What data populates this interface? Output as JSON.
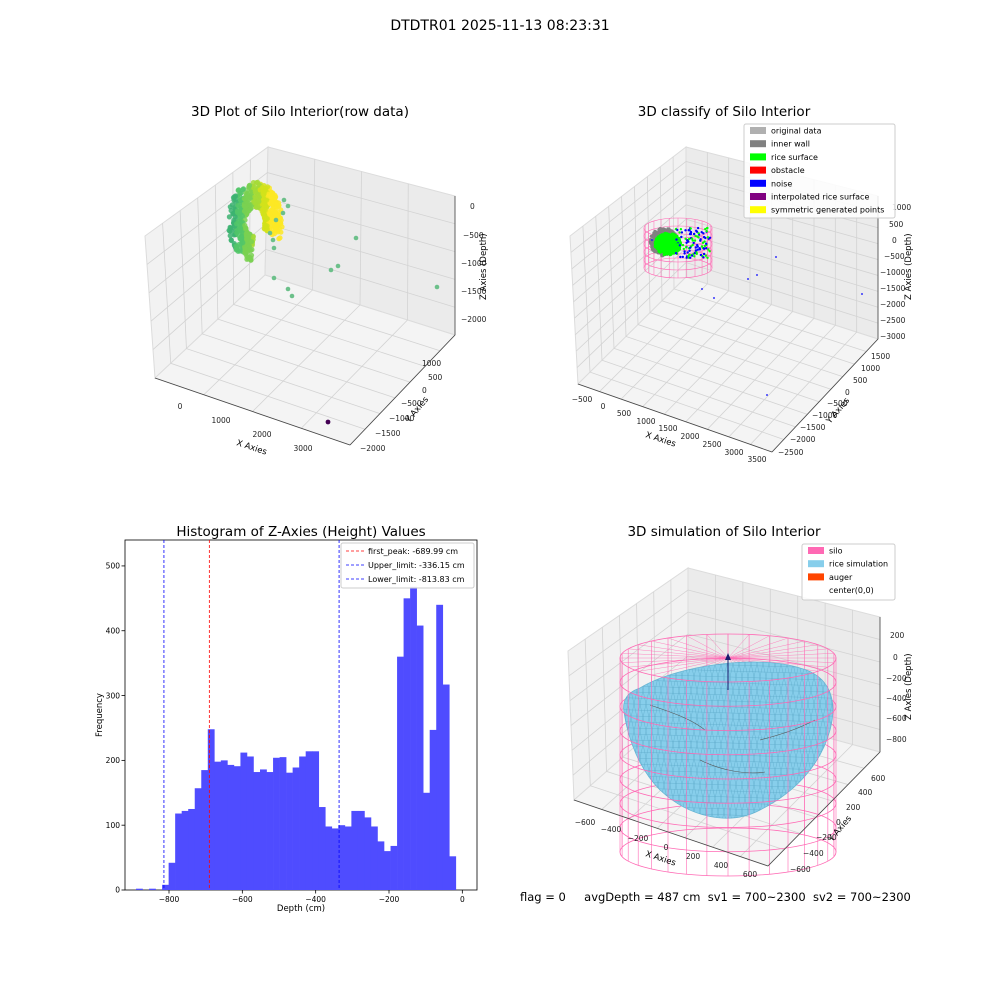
{
  "suptitle": "DTDTR01 2025-11-13 08:23:31",
  "footer": {
    "flag": "flag = 0",
    "avg_depth": "avgDepth = 487 cm",
    "sv1": "sv1 = 700~2300",
    "sv2": "sv2 = 700~2300"
  },
  "colors": {
    "hist_bar": "#4f4cff",
    "first_peak_line": "#ff0000",
    "limit_line": "#0000ff",
    "silo": "#ff69b4",
    "rice_simulation": "#87ceeb",
    "auger": "#ff4500",
    "original_data": "#b0b0b0",
    "inner_wall": "#808080",
    "rice_surface": "#00ff00",
    "obstacle": "#ff0000",
    "noise": "#0000ff",
    "interpolated_rice_surface": "#800080",
    "symmetric_generated_points": "#ffff00"
  },
  "chart_data": [
    {
      "type": "scatter",
      "subtype": "3d",
      "title": "3D Plot of Silo Interior(row data)",
      "xlabel": "X Axies",
      "ylabel": "Y Axies",
      "zlabel": "Z Axies (Depth)",
      "x_ticks": [
        "0",
        "1000",
        "2000",
        "3000"
      ],
      "y_ticks": [
        "1000",
        "500",
        "0",
        "−500",
        "−1000",
        "−1500",
        "−2000"
      ],
      "z_ticks": [
        "0",
        "−500",
        "−1000",
        "−1500",
        "−2000"
      ],
      "grid": true
    },
    {
      "type": "scatter",
      "subtype": "3d",
      "title": "3D classify of Silo Interior",
      "xlabel": "X Axies",
      "ylabel": "Y Axies",
      "zlabel": "Z Axies (Depth)",
      "x_ticks": [
        "−500",
        "0",
        "500",
        "1000",
        "1500",
        "2000",
        "2500",
        "3000",
        "3500"
      ],
      "y_ticks": [
        "1500",
        "1000",
        "500",
        "0",
        "−500",
        "−1000",
        "−1500",
        "−2000",
        "−2500"
      ],
      "z_ticks": [
        "1000",
        "500",
        "0",
        "−500",
        "−1000",
        "−1500",
        "−2000",
        "−2500",
        "−3000"
      ],
      "legend": [
        "original data",
        "inner wall",
        "rice surface",
        "obstacle",
        "noise",
        "interpolated rice surface",
        "symmetric generated points"
      ],
      "legend_placement": "top-right",
      "grid": true
    },
    {
      "type": "bar",
      "subtype": "histogram",
      "title": "Histogram of Z-Axies (Height) Values",
      "xlabel": "Depth (cm)",
      "ylabel": "Frequency",
      "xlim": [
        -920,
        40
      ],
      "ylim": [
        0,
        540
      ],
      "x_ticks": [
        "−800",
        "−600",
        "−400",
        "−200",
        "0"
      ],
      "y_ticks": [
        "0",
        "100",
        "200",
        "300",
        "400",
        "500"
      ],
      "bin_start": -890,
      "bin_width": 17.8,
      "values": [
        2,
        0,
        2,
        0,
        8,
        42,
        118,
        122,
        125,
        157,
        185,
        248,
        198,
        200,
        193,
        191,
        212,
        206,
        182,
        186,
        182,
        204,
        205,
        181,
        189,
        206,
        214,
        214,
        128,
        98,
        95,
        100,
        98,
        122,
        122,
        112,
        98,
        75,
        60,
        68,
        360,
        450,
        468,
        408,
        150,
        247,
        440,
        317,
        52
      ],
      "vlines": [
        {
          "label": "first_peak: -689.99 cm",
          "x": -689.99,
          "color": "#ff0000"
        },
        {
          "label": "Upper_limit: -336.15 cm",
          "x": -336.15,
          "color": "#0000ff"
        },
        {
          "label": "Lower_limit: -813.83 cm",
          "x": -813.83,
          "color": "#0000ff"
        }
      ],
      "legend_placement": "top-right"
    },
    {
      "type": "surface",
      "subtype": "3d",
      "title": "3D simulation of Silo Interior",
      "xlabel": "X Axies",
      "ylabel": "Y Axies",
      "zlabel": "Z Axies (Depth)",
      "x_ticks": [
        "−600",
        "−400",
        "−200",
        "0",
        "200",
        "400",
        "600"
      ],
      "y_ticks": [
        "600",
        "400",
        "200",
        "0",
        "−200",
        "−400",
        "−600"
      ],
      "z_ticks": [
        "200",
        "0",
        "−200",
        "−400",
        "−600",
        "−800"
      ],
      "legend": [
        "silo",
        "rice simulation",
        "auger",
        "center(0,0)"
      ],
      "legend_placement": "top-right",
      "grid": true
    }
  ]
}
